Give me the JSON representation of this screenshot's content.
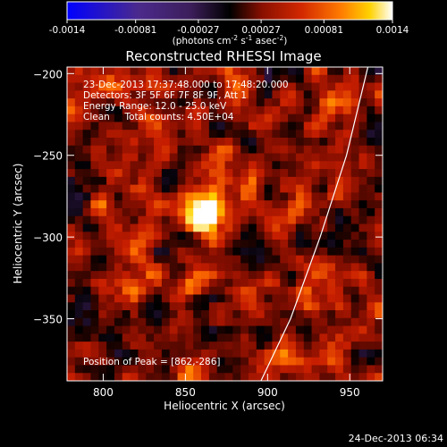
{
  "colorbar": {
    "ticks": [
      "-0.0014",
      "-0.00081",
      "-0.00027",
      "0.00027",
      "0.00081",
      "0.0014"
    ],
    "unit_parts": [
      "(photons cm",
      "-2",
      " s",
      "-1",
      " asec",
      "-2",
      ")"
    ]
  },
  "chart_data": {
    "type": "heatmap",
    "title": "Reconstructed RHESSI Image",
    "xlabel": "Heliocentric X (arcsec)",
    "ylabel": "Heliocentric Y (arcsec)",
    "xlim": [
      778,
      970
    ],
    "ylim": [
      -388,
      -196
    ],
    "xticks": [
      800,
      850,
      900,
      950
    ],
    "yticks": [
      -200,
      -250,
      -300,
      -350
    ],
    "xtick_labels": [
      "800",
      "850",
      "900",
      "950"
    ],
    "ytick_labels": [
      "−200",
      "−250",
      "−300",
      "−350"
    ],
    "color_range": [
      -0.0014,
      0.0014
    ],
    "colormap": [
      "#0000ff",
      "#4b2a8c",
      "#3c1e5a",
      "#000000",
      "#7a0c00",
      "#c81e00",
      "#ff6e00",
      "#ffd200",
      "#ffffff"
    ],
    "peak_source": {
      "x": 862,
      "y": -286,
      "sigma_arcsec": 7
    },
    "limb_curve": [
      [
        896,
        -388
      ],
      [
        914,
        -350
      ],
      [
        932,
        -300
      ],
      [
        948,
        -250
      ],
      [
        961,
        -196
      ]
    ],
    "limb_color": "#ffffff",
    "annotations": [
      "23-Dec-2013 17:37:48.000 to 17:48:20.000",
      "Detectors: 3F 5F 6F 7F 8F 9F, Att 1",
      "Energy Range: 12.0 - 25.0 keV",
      "Clean     Total counts: 4.50E+04"
    ],
    "peak_label": "Position of Peak = [862,-286]"
  },
  "footer": {
    "timestamp": "24-Dec-2013 06:34"
  }
}
